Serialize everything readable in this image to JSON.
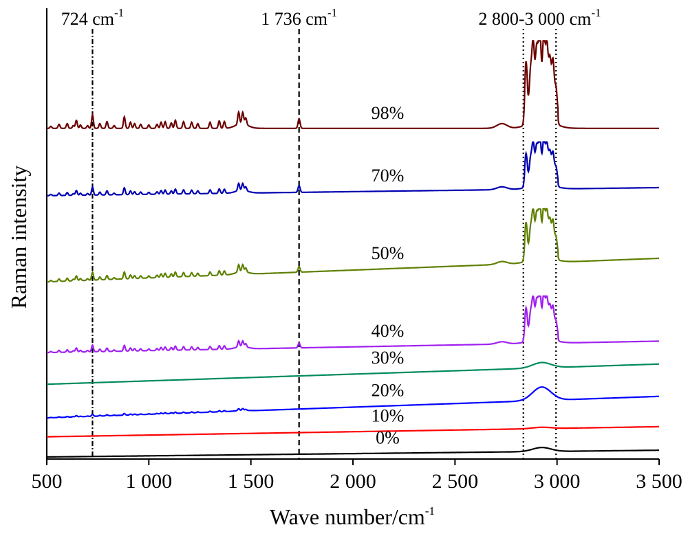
{
  "chart_data": {
    "type": "line",
    "ylabel": "Raman intensity",
    "xlabel_base": "Wave number/cm",
    "xlabel_sup": "-1",
    "xlim": [
      500,
      3500
    ],
    "x_ticks": [
      500,
      1000,
      1500,
      2000,
      2500,
      3000,
      3500
    ],
    "x_tick_labels": [
      "500",
      "1 000",
      "1 500",
      "2 000",
      "2 500",
      "3 000",
      "3 500"
    ],
    "y_ticks_shown": false,
    "grid": false,
    "legend": "none",
    "reference_lines": [
      {
        "x": 724,
        "style": "dash-dot"
      },
      {
        "x": 1736,
        "style": "dashed"
      },
      {
        "x": 2835,
        "style": "dotted"
      },
      {
        "x": 2995,
        "style": "dotted"
      }
    ],
    "annotations": [
      {
        "base": "724 cm",
        "sup": "-1"
      },
      {
        "base": "1 736 cm",
        "sup": "-1"
      },
      {
        "base": "2 800-3 000 cm",
        "sup": "-1"
      }
    ],
    "series": [
      {
        "name": "0%",
        "color": "#000000",
        "baseline_start": 0.0,
        "baseline_end": 0.1,
        "fp": 0.0,
        "carbonyl": 0.0,
        "ch": 0.06,
        "ch_structured": false
      },
      {
        "name": "10%",
        "color": "#ff0000",
        "baseline_start": 0.3,
        "baseline_end": 0.45,
        "fp": 0.0,
        "carbonyl": 0.0,
        "ch": 0.02,
        "ch_structured": false
      },
      {
        "name": "20%",
        "color": "#0000ff",
        "baseline_start": 0.58,
        "baseline_end": 0.9,
        "fp": 0.03,
        "carbonyl": 0.0,
        "ch": 0.2,
        "ch_structured": false
      },
      {
        "name": "30%",
        "color": "#008b5a",
        "baseline_start": 1.08,
        "baseline_end": 1.38,
        "fp": 0.0,
        "carbonyl": 0.0,
        "ch": 0.08,
        "ch_structured": false
      },
      {
        "name": "40%",
        "color": "#a020f0",
        "baseline_start": 1.55,
        "baseline_end": 1.72,
        "fp": 0.1,
        "carbonyl": 0.07,
        "ch": 0.7,
        "ch_structured": true
      },
      {
        "name": "50%",
        "color": "#5e8000",
        "baseline_start": 2.6,
        "baseline_end": 2.95,
        "fp": 0.12,
        "carbonyl": 0.08,
        "ch": 0.8,
        "ch_structured": true
      },
      {
        "name": "70%",
        "color": "#0000b0",
        "baseline_start": 3.88,
        "baseline_end": 4.0,
        "fp": 0.12,
        "carbonyl": 0.1,
        "ch": 0.7,
        "ch_structured": true
      },
      {
        "name": "98%",
        "color": "#6b0000",
        "baseline_start": 4.88,
        "baseline_end": 4.88,
        "fp": 0.2,
        "carbonyl": 0.14,
        "ch": 1.3,
        "ch_structured": true
      }
    ]
  }
}
